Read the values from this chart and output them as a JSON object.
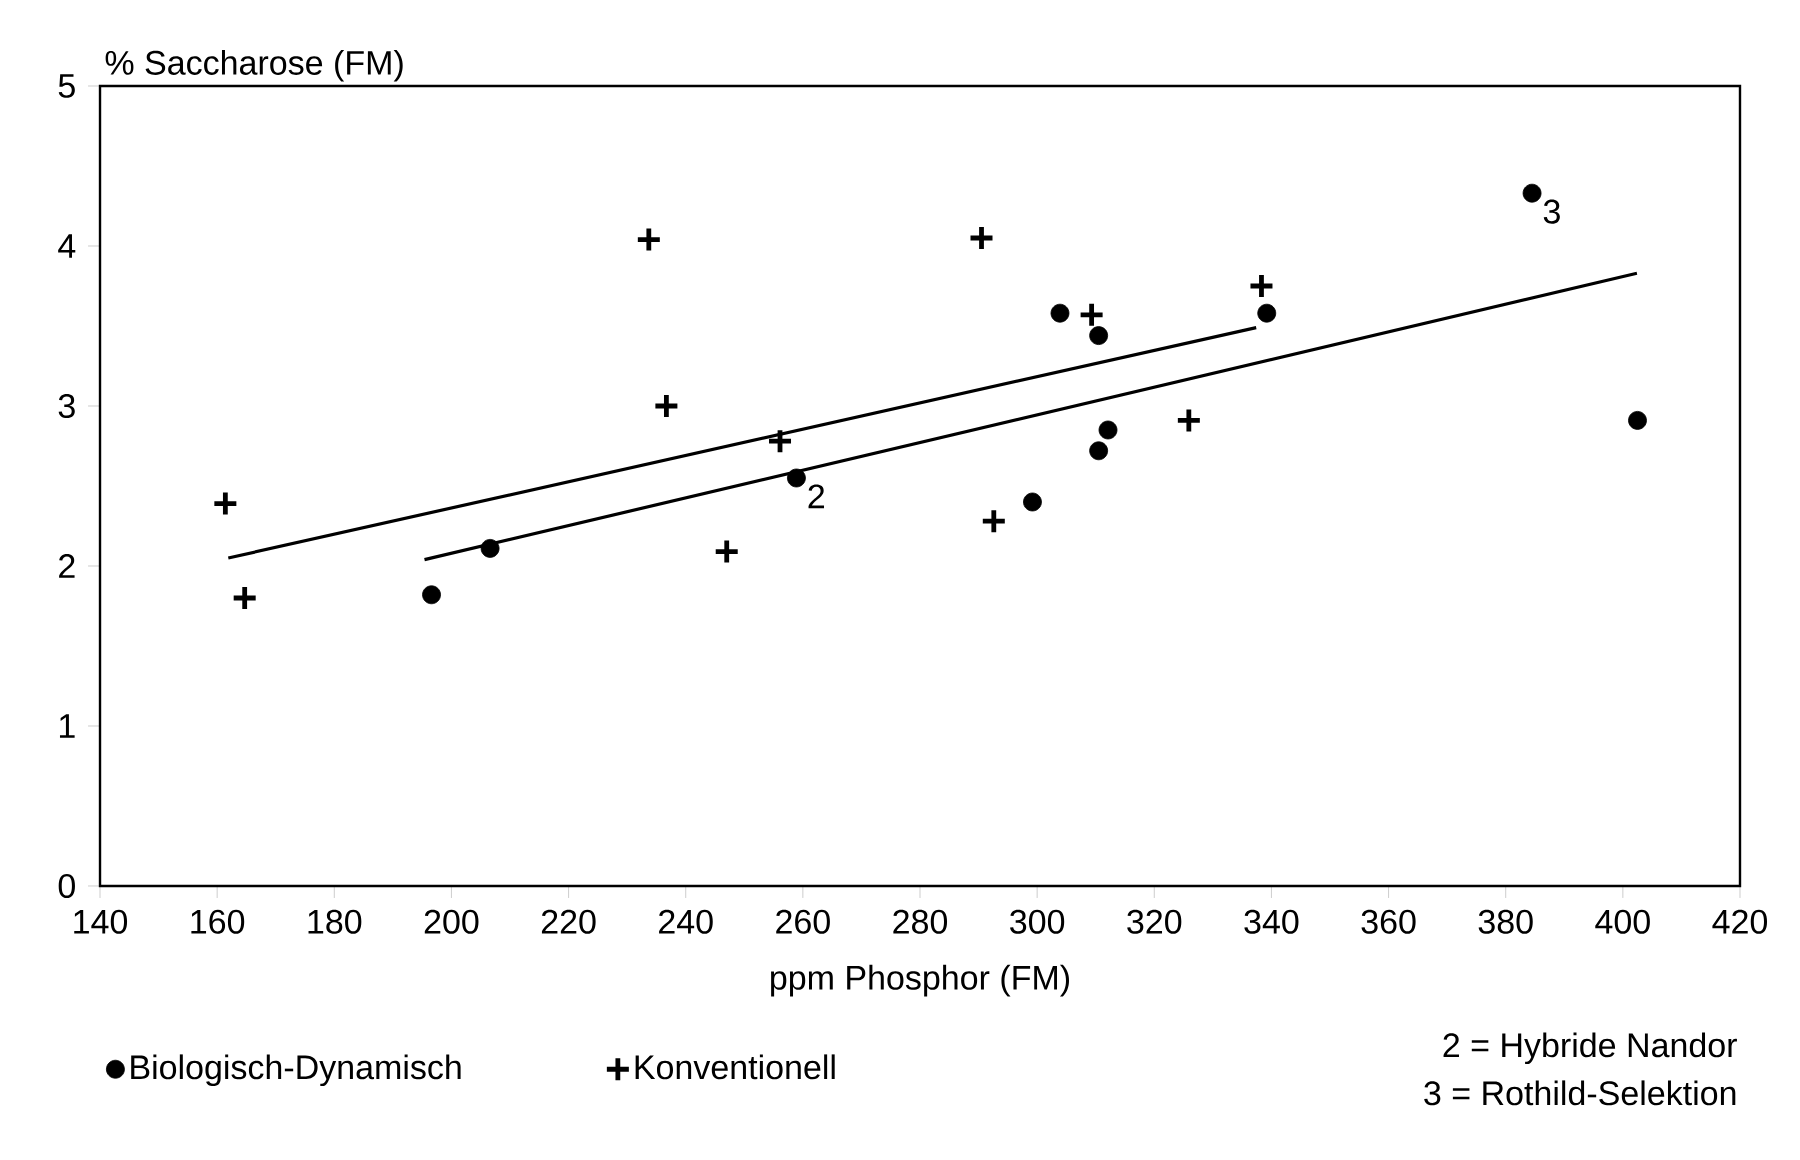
{
  "chart_data": {
    "type": "scatter",
    "xlabel": "ppm Phosphor (FM)",
    "ylabel": "% Saccharose (FM)",
    "xlim": [
      140,
      420
    ],
    "xticks": [
      140,
      160,
      180,
      200,
      220,
      240,
      260,
      280,
      300,
      320,
      340,
      360,
      380,
      400,
      420
    ],
    "ylim": [
      0,
      5
    ],
    "yticks": [
      0,
      1,
      2,
      3,
      4,
      5
    ],
    "grid": false,
    "legend": "bottom",
    "series": [
      {
        "name": "Biologisch-Dynamisch",
        "color": "#000000",
        "marker": "circle",
        "x": [
          196.6,
          206.6,
          258.9,
          299.2,
          303.9,
          310.5,
          310.5,
          312.1,
          339.2,
          384.5,
          402.5
        ],
        "values": [
          1.82,
          2.11,
          2.55,
          2.4,
          3.58,
          3.44,
          2.72,
          2.85,
          3.58,
          4.33,
          2.91
        ]
      },
      {
        "name": "Konventionell",
        "color": "#000000",
        "marker": "cross",
        "x": [
          161.4,
          164.7,
          233.7,
          236.7,
          247,
          256.1,
          290.5,
          292.6,
          309.3,
          325.9,
          338.3
        ],
        "values": [
          2.39,
          1.8,
          4.04,
          3.0,
          2.09,
          2.78,
          4.05,
          2.28,
          3.57,
          2.91,
          3.75
        ]
      },
      {
        "type": "line",
        "color": "#000000",
        "marker": "none",
        "x": [
          195.4,
          402.4
        ],
        "values": [
          2.04,
          3.83
        ]
      },
      {
        "type": "line",
        "color": "#000000",
        "marker": "none",
        "x": [
          161.9,
          337.4
        ],
        "values": [
          2.05,
          3.49
        ]
      }
    ],
    "annotations": [
      {
        "text": "2",
        "x": 258.9,
        "y": 2.55
      },
      {
        "text": "3",
        "x": 384.5,
        "y": 4.33
      },
      "2 = Hybride Nandor",
      "3 = Rothild-Selektion"
    ]
  }
}
